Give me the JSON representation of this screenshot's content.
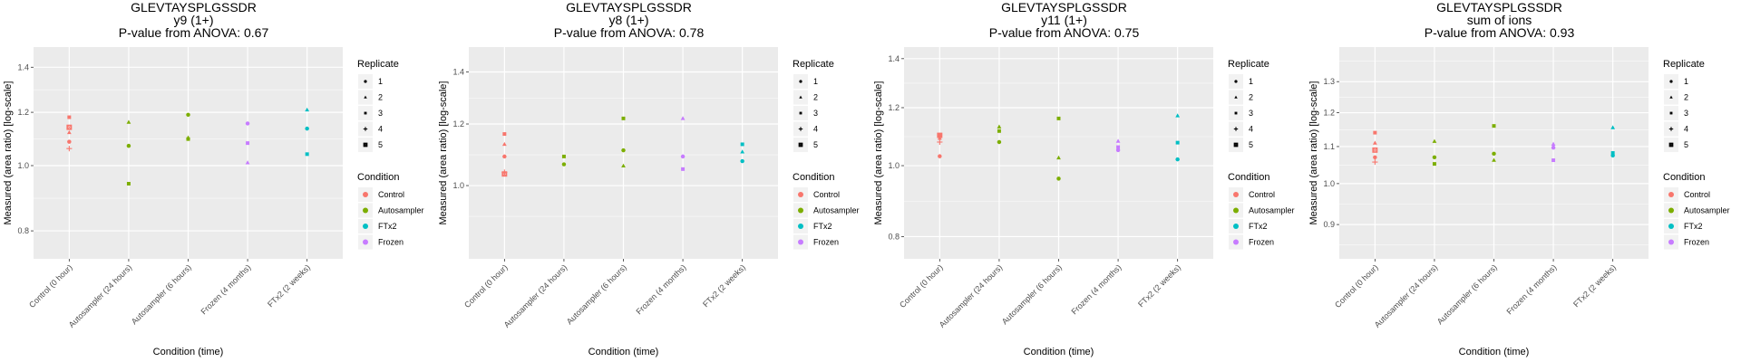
{
  "chart_data": [
    {
      "type": "scatter",
      "title": [
        "GLEVTAYSPLGSSDR",
        "y9 (1+)",
        "P-value from ANOVA: 0.67"
      ],
      "xlabel": "Condition (time)",
      "ylabel": "Measured (area ratio) [log-scale]",
      "yscale": "log",
      "ylim": [
        0.727,
        1.5
      ],
      "yticks": [
        0.8,
        1.0,
        1.2,
        1.4
      ],
      "ytick_labels": [
        "0.8",
        "1.0",
        "1.2",
        "1.4"
      ],
      "categories": [
        "Control (0 hour)",
        "Autosampler (24 hours)",
        "Autosampler (6 hours)",
        "Frozen (4 months)",
        "FTx2 (2 weeks)"
      ],
      "grid": true,
      "legend_position": "right",
      "points": [
        {
          "category": "Control (0 hour)",
          "condition": "Control",
          "replicate": "1",
          "y": 1.085
        },
        {
          "category": "Control (0 hour)",
          "condition": "Control",
          "replicate": "2",
          "y": 1.12
        },
        {
          "category": "Control (0 hour)",
          "condition": "Control",
          "replicate": "3",
          "y": 1.18
        },
        {
          "category": "Control (0 hour)",
          "condition": "Control",
          "replicate": "4",
          "y": 1.06
        },
        {
          "category": "Control (0 hour)",
          "condition": "Control",
          "replicate": "5",
          "y": 1.14
        },
        {
          "category": "Autosampler (24 hours)",
          "condition": "Autosampler",
          "replicate": "1",
          "y": 1.07
        },
        {
          "category": "Autosampler (24 hours)",
          "condition": "Autosampler",
          "replicate": "2",
          "y": 1.16
        },
        {
          "category": "Autosampler (24 hours)",
          "condition": "Autosampler",
          "replicate": "3",
          "y": 0.94
        },
        {
          "category": "Autosampler (6 hours)",
          "condition": "Autosampler",
          "replicate": "1",
          "y": 1.19
        },
        {
          "category": "Autosampler (6 hours)",
          "condition": "Autosampler",
          "replicate": "2",
          "y": 1.1
        },
        {
          "category": "Autosampler (6 hours)",
          "condition": "Autosampler",
          "replicate": "3",
          "y": 1.095
        },
        {
          "category": "Frozen (4 months)",
          "condition": "Frozen",
          "replicate": "1",
          "y": 1.155
        },
        {
          "category": "Frozen (4 months)",
          "condition": "Frozen",
          "replicate": "2",
          "y": 1.01
        },
        {
          "category": "Frozen (4 months)",
          "condition": "Frozen",
          "replicate": "3",
          "y": 1.08
        },
        {
          "category": "FTx2 (2 weeks)",
          "condition": "FTx2",
          "replicate": "1",
          "y": 1.135
        },
        {
          "category": "FTx2 (2 weeks)",
          "condition": "FTx2",
          "replicate": "2",
          "y": 1.21
        },
        {
          "category": "FTx2 (2 weeks)",
          "condition": "FTx2",
          "replicate": "3",
          "y": 1.04
        }
      ]
    },
    {
      "type": "scatter",
      "title": [
        "GLEVTAYSPLGSSDR",
        "y8 (1+)",
        "P-value from ANOVA: 0.78"
      ],
      "xlabel": "Condition (time)",
      "ylabel": "Measured (area ratio) [log-scale]",
      "yscale": "log",
      "ylim": [
        0.805,
        1.507
      ],
      "yticks": [
        1.0,
        1.2,
        1.4
      ],
      "ytick_labels": [
        "1.0",
        "1.2",
        "1.4"
      ],
      "categories": [
        "Control (0 hour)",
        "Autosampler (24 hours)",
        "Autosampler (6 hours)",
        "Frozen (4 months)",
        "FTx2 (2 weeks)"
      ],
      "grid": true,
      "legend_position": "right",
      "points": [
        {
          "category": "Control (0 hour)",
          "condition": "Control",
          "replicate": "1",
          "y": 1.09
        },
        {
          "category": "Control (0 hour)",
          "condition": "Control",
          "replicate": "2",
          "y": 1.13
        },
        {
          "category": "Control (0 hour)",
          "condition": "Control",
          "replicate": "3",
          "y": 1.165
        },
        {
          "category": "Control (0 hour)",
          "condition": "Control",
          "replicate": "4",
          "y": 1.04
        },
        {
          "category": "Control (0 hour)",
          "condition": "Control",
          "replicate": "5",
          "y": 1.035
        },
        {
          "category": "Autosampler (24 hours)",
          "condition": "Autosampler",
          "replicate": "1",
          "y": 1.065
        },
        {
          "category": "Autosampler (24 hours)",
          "condition": "Autosampler",
          "replicate": "3",
          "y": 1.09
        },
        {
          "category": "Autosampler (6 hours)",
          "condition": "Autosampler",
          "replicate": "1",
          "y": 1.11
        },
        {
          "category": "Autosampler (6 hours)",
          "condition": "Autosampler",
          "replicate": "2",
          "y": 1.06
        },
        {
          "category": "Autosampler (6 hours)",
          "condition": "Autosampler",
          "replicate": "3",
          "y": 1.22
        },
        {
          "category": "Frozen (4 months)",
          "condition": "Frozen",
          "replicate": "1",
          "y": 1.09
        },
        {
          "category": "Frozen (4 months)",
          "condition": "Frozen",
          "replicate": "2",
          "y": 1.22
        },
        {
          "category": "Frozen (4 months)",
          "condition": "Frozen",
          "replicate": "3",
          "y": 1.05
        },
        {
          "category": "FTx2 (2 weeks)",
          "condition": "FTx2",
          "replicate": "1",
          "y": 1.075
        },
        {
          "category": "FTx2 (2 weeks)",
          "condition": "FTx2",
          "replicate": "2",
          "y": 1.105
        },
        {
          "category": "FTx2 (2 weeks)",
          "condition": "FTx2",
          "replicate": "3",
          "y": 1.13
        }
      ]
    },
    {
      "type": "scatter",
      "title": [
        "GLEVTAYSPLGSSDR",
        "y11 (1+)",
        "P-value from ANOVA: 0.75"
      ],
      "xlabel": "Condition (time)",
      "ylabel": "Measured (area ratio) [log-scale]",
      "yscale": "log",
      "ylim": [
        0.746,
        1.452
      ],
      "yticks": [
        0.8,
        1.0,
        1.2,
        1.4
      ],
      "ytick_labels": [
        "0.8",
        "1.0",
        "1.2",
        "1.4"
      ],
      "categories": [
        "Control (0 hour)",
        "Autosampler (24 hours)",
        "Autosampler (6 hours)",
        "Frozen (4 months)",
        "FTx2 (2 weeks)"
      ],
      "grid": true,
      "legend_position": "right",
      "points": [
        {
          "category": "Control (0 hour)",
          "condition": "Control",
          "replicate": "1",
          "y": 1.03
        },
        {
          "category": "Control (0 hour)",
          "condition": "Control",
          "replicate": "2",
          "y": 1.09
        },
        {
          "category": "Control (0 hour)",
          "condition": "Control",
          "replicate": "3",
          "y": 1.1
        },
        {
          "category": "Control (0 hour)",
          "condition": "Control",
          "replicate": "4",
          "y": 1.077
        },
        {
          "category": "Control (0 hour)",
          "condition": "Control",
          "replicate": "5",
          "y": 1.1
        },
        {
          "category": "Autosampler (24 hours)",
          "condition": "Autosampler",
          "replicate": "1",
          "y": 1.077
        },
        {
          "category": "Autosampler (24 hours)",
          "condition": "Autosampler",
          "replicate": "2",
          "y": 1.13
        },
        {
          "category": "Autosampler (24 hours)",
          "condition": "Autosampler",
          "replicate": "3",
          "y": 1.115
        },
        {
          "category": "Autosampler (6 hours)",
          "condition": "Autosampler",
          "replicate": "1",
          "y": 0.96
        },
        {
          "category": "Autosampler (6 hours)",
          "condition": "Autosampler",
          "replicate": "2",
          "y": 1.025
        },
        {
          "category": "Autosampler (6 hours)",
          "condition": "Autosampler",
          "replicate": "3",
          "y": 1.16
        },
        {
          "category": "Frozen (4 months)",
          "condition": "Frozen",
          "replicate": "1",
          "y": 1.05
        },
        {
          "category": "Frozen (4 months)",
          "condition": "Frozen",
          "replicate": "2",
          "y": 1.08
        },
        {
          "category": "Frozen (4 months)",
          "condition": "Frozen",
          "replicate": "3",
          "y": 1.06
        },
        {
          "category": "FTx2 (2 weeks)",
          "condition": "FTx2",
          "replicate": "1",
          "y": 1.02
        },
        {
          "category": "FTx2 (2 weeks)",
          "condition": "FTx2",
          "replicate": "2",
          "y": 1.17
        },
        {
          "category": "FTx2 (2 weeks)",
          "condition": "FTx2",
          "replicate": "3",
          "y": 1.075
        }
      ]
    },
    {
      "type": "scatter",
      "title": [
        "GLEVTAYSPLGSSDR",
        "sum of ions",
        "P-value from ANOVA: 0.93"
      ],
      "xlabel": "Condition (time)",
      "ylabel": "Measured (area ratio) [log-scale]",
      "yscale": "log",
      "ylim": [
        0.824,
        1.421
      ],
      "yticks": [
        0.9,
        1.0,
        1.1,
        1.2,
        1.3
      ],
      "ytick_labels": [
        "0.9",
        "1.0",
        "1.1",
        "1.2",
        "1.3"
      ],
      "categories": [
        "Control (0 hour)",
        "Autosampler (24 hours)",
        "Autosampler (6 hours)",
        "Frozen (4 months)",
        "FTx2 (2 weeks)"
      ],
      "grid": true,
      "legend_position": "right",
      "points": [
        {
          "category": "Control (0 hour)",
          "condition": "Control",
          "replicate": "1",
          "y": 1.07
        },
        {
          "category": "Control (0 hour)",
          "condition": "Control",
          "replicate": "2",
          "y": 1.11
        },
        {
          "category": "Control (0 hour)",
          "condition": "Control",
          "replicate": "3",
          "y": 1.14
        },
        {
          "category": "Control (0 hour)",
          "condition": "Control",
          "replicate": "4",
          "y": 1.057
        },
        {
          "category": "Control (0 hour)",
          "condition": "Control",
          "replicate": "5",
          "y": 1.09
        },
        {
          "category": "Autosampler (24 hours)",
          "condition": "Autosampler",
          "replicate": "1",
          "y": 1.07
        },
        {
          "category": "Autosampler (24 hours)",
          "condition": "Autosampler",
          "replicate": "2",
          "y": 1.115
        },
        {
          "category": "Autosampler (24 hours)",
          "condition": "Autosampler",
          "replicate": "3",
          "y": 1.052
        },
        {
          "category": "Autosampler (6 hours)",
          "condition": "Autosampler",
          "replicate": "1",
          "y": 1.08
        },
        {
          "category": "Autosampler (6 hours)",
          "condition": "Autosampler",
          "replicate": "2",
          "y": 1.062
        },
        {
          "category": "Autosampler (6 hours)",
          "condition": "Autosampler",
          "replicate": "3",
          "y": 1.16
        },
        {
          "category": "Frozen (4 months)",
          "condition": "Frozen",
          "replicate": "1",
          "y": 1.097
        },
        {
          "category": "Frozen (4 months)",
          "condition": "Frozen",
          "replicate": "2",
          "y": 1.107
        },
        {
          "category": "Frozen (4 months)",
          "condition": "Frozen",
          "replicate": "3",
          "y": 1.062
        },
        {
          "category": "FTx2 (2 weeks)",
          "condition": "FTx2",
          "replicate": "1",
          "y": 1.075
        },
        {
          "category": "FTx2 (2 weeks)",
          "condition": "FTx2",
          "replicate": "2",
          "y": 1.155
        },
        {
          "category": "FTx2 (2 weeks)",
          "condition": "FTx2",
          "replicate": "3",
          "y": 1.082
        }
      ]
    }
  ],
  "legend": {
    "replicate_title": "Replicate",
    "replicates": [
      {
        "label": "1",
        "shape": "circle"
      },
      {
        "label": "2",
        "shape": "triangle"
      },
      {
        "label": "3",
        "shape": "square"
      },
      {
        "label": "4",
        "shape": "cross"
      },
      {
        "label": "5",
        "shape": "boxed-x"
      }
    ],
    "condition_title": "Condition",
    "conditions": [
      {
        "label": "Control",
        "color": "#F8766D"
      },
      {
        "label": "Autosampler",
        "color": "#7CAE00"
      },
      {
        "label": "FTx2",
        "color": "#00BFC4"
      },
      {
        "label": "Frozen",
        "color": "#C77CFF"
      }
    ]
  },
  "colors": {
    "panel_background": "#EBEBEB",
    "grid_major": "#FFFFFF",
    "legend_key_background": "#F2F2F2"
  }
}
